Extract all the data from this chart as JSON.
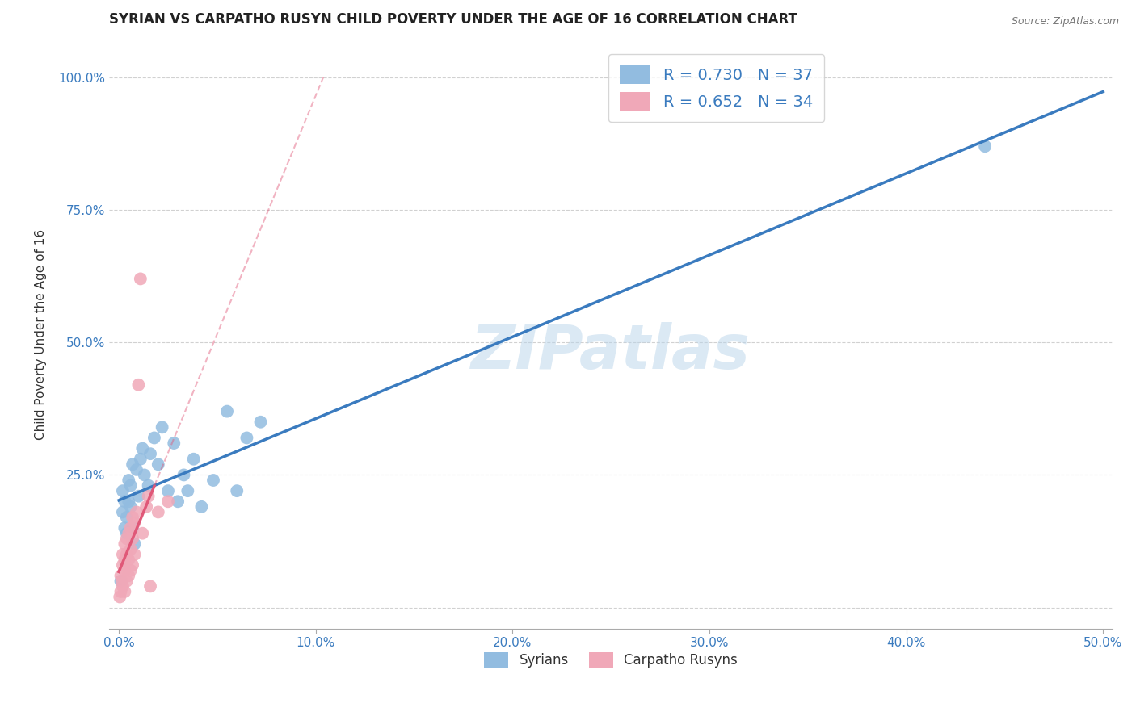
{
  "title": "SYRIAN VS CARPATHO RUSYN CHILD POVERTY UNDER THE AGE OF 16 CORRELATION CHART",
  "source": "Source: ZipAtlas.com",
  "xlabel_syrians": "Syrians",
  "xlabel_carpatho": "Carpatho Rusyns",
  "ylabel": "Child Poverty Under the Age of 16",
  "watermark": "ZIPatlas",
  "blue_R": 0.73,
  "blue_N": 37,
  "pink_R": 0.652,
  "pink_N": 34,
  "blue_color": "#92bce0",
  "blue_line_color": "#3a7bbf",
  "pink_color": "#f0a8b8",
  "pink_line_color": "#e05878",
  "blue_scatter_x": [
    0.001,
    0.002,
    0.002,
    0.003,
    0.003,
    0.004,
    0.004,
    0.005,
    0.005,
    0.006,
    0.006,
    0.007,
    0.007,
    0.008,
    0.009,
    0.01,
    0.011,
    0.012,
    0.013,
    0.015,
    0.016,
    0.018,
    0.02,
    0.022,
    0.025,
    0.028,
    0.03,
    0.033,
    0.035,
    0.038,
    0.042,
    0.048,
    0.055,
    0.06,
    0.065,
    0.072,
    0.44
  ],
  "blue_scatter_y": [
    0.05,
    0.18,
    0.22,
    0.15,
    0.2,
    0.17,
    0.14,
    0.2,
    0.24,
    0.19,
    0.23,
    0.15,
    0.27,
    0.12,
    0.26,
    0.21,
    0.28,
    0.3,
    0.25,
    0.23,
    0.29,
    0.32,
    0.27,
    0.34,
    0.22,
    0.31,
    0.2,
    0.25,
    0.22,
    0.28,
    0.19,
    0.24,
    0.37,
    0.22,
    0.32,
    0.35,
    0.87
  ],
  "pink_scatter_x": [
    0.0005,
    0.001,
    0.001,
    0.0015,
    0.002,
    0.002,
    0.002,
    0.003,
    0.003,
    0.003,
    0.003,
    0.004,
    0.004,
    0.004,
    0.005,
    0.005,
    0.005,
    0.006,
    0.006,
    0.006,
    0.007,
    0.007,
    0.007,
    0.008,
    0.008,
    0.009,
    0.01,
    0.011,
    0.012,
    0.014,
    0.015,
    0.016,
    0.02,
    0.025
  ],
  "pink_scatter_y": [
    0.02,
    0.03,
    0.06,
    0.05,
    0.04,
    0.08,
    0.1,
    0.03,
    0.07,
    0.09,
    0.12,
    0.05,
    0.1,
    0.13,
    0.06,
    0.09,
    0.14,
    0.07,
    0.11,
    0.15,
    0.08,
    0.13,
    0.17,
    0.1,
    0.16,
    0.18,
    0.42,
    0.62,
    0.14,
    0.19,
    0.21,
    0.04,
    0.18,
    0.2
  ],
  "xlim": [
    -0.005,
    0.505
  ],
  "ylim": [
    -0.04,
    1.07
  ],
  "x_ticks": [
    0.0,
    0.1,
    0.2,
    0.3,
    0.4,
    0.5
  ],
  "x_tick_labels": [
    "0.0%",
    "10.0%",
    "20.0%",
    "30.0%",
    "40.0%",
    "50.0%"
  ],
  "y_ticks": [
    0.0,
    0.25,
    0.5,
    0.75,
    1.0
  ],
  "y_tick_labels": [
    "",
    "25.0%",
    "50.0%",
    "75.0%",
    "100.0%"
  ],
  "grid_color": "#cccccc",
  "background_color": "#ffffff",
  "title_fontsize": 12,
  "label_fontsize": 11,
  "tick_fontsize": 11
}
